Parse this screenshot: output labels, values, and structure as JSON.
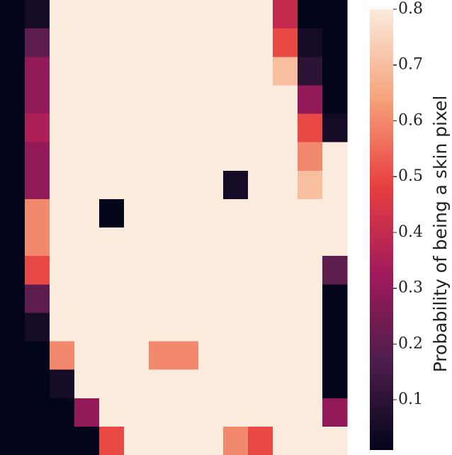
{
  "chart_data": {
    "type": "heatmap",
    "colorbar_label": "Probability of being a skin pixel",
    "colormap": [
      "#03051a",
      "#4c1d4b",
      "#a11a5b",
      "#e83f3f",
      "#f6a47c",
      "#faebdd"
    ],
    "clim": [
      0.01,
      0.8
    ],
    "cticks": [
      0.1,
      0.2,
      0.3,
      0.4,
      0.5,
      0.6,
      0.7,
      0.8
    ],
    "values": [
      [
        0.01,
        0.05,
        0.8,
        0.8,
        0.8,
        0.8,
        0.8,
        0.8,
        0.8,
        0.8,
        0.8,
        0.4,
        0.01,
        0.01
      ],
      [
        0.01,
        0.2,
        0.8,
        0.8,
        0.8,
        0.8,
        0.8,
        0.8,
        0.8,
        0.8,
        0.8,
        0.5,
        0.05,
        0.01
      ],
      [
        0.01,
        0.3,
        0.8,
        0.8,
        0.8,
        0.8,
        0.8,
        0.8,
        0.8,
        0.8,
        0.8,
        0.7,
        0.1,
        0.01
      ],
      [
        0.01,
        0.3,
        0.8,
        0.8,
        0.8,
        0.8,
        0.8,
        0.8,
        0.8,
        0.8,
        0.8,
        0.8,
        0.3,
        0.01
      ],
      [
        0.01,
        0.35,
        0.8,
        0.8,
        0.8,
        0.8,
        0.8,
        0.8,
        0.8,
        0.8,
        0.8,
        0.8,
        0.5,
        0.05
      ],
      [
        0.01,
        0.3,
        0.8,
        0.8,
        0.8,
        0.8,
        0.8,
        0.8,
        0.8,
        0.8,
        0.8,
        0.8,
        0.6,
        0.8
      ],
      [
        0.01,
        0.3,
        0.8,
        0.8,
        0.8,
        0.8,
        0.8,
        0.8,
        0.8,
        0.05,
        0.8,
        0.8,
        0.7,
        0.8
      ],
      [
        0.01,
        0.6,
        0.8,
        0.8,
        0.01,
        0.8,
        0.8,
        0.8,
        0.8,
        0.8,
        0.8,
        0.8,
        0.8,
        0.8
      ],
      [
        0.01,
        0.6,
        0.8,
        0.8,
        0.8,
        0.8,
        0.8,
        0.8,
        0.8,
        0.8,
        0.8,
        0.8,
        0.8,
        0.8
      ],
      [
        0.01,
        0.5,
        0.8,
        0.8,
        0.8,
        0.8,
        0.8,
        0.8,
        0.8,
        0.8,
        0.8,
        0.8,
        0.8,
        0.2
      ],
      [
        0.01,
        0.2,
        0.8,
        0.8,
        0.8,
        0.8,
        0.8,
        0.8,
        0.8,
        0.8,
        0.8,
        0.8,
        0.8,
        0.01
      ],
      [
        0.01,
        0.05,
        0.8,
        0.8,
        0.8,
        0.8,
        0.8,
        0.8,
        0.8,
        0.8,
        0.8,
        0.8,
        0.8,
        0.01
      ],
      [
        0.01,
        0.01,
        0.6,
        0.8,
        0.8,
        0.8,
        0.6,
        0.6,
        0.8,
        0.8,
        0.8,
        0.8,
        0.8,
        0.01
      ],
      [
        0.01,
        0.01,
        0.05,
        0.8,
        0.8,
        0.8,
        0.8,
        0.8,
        0.8,
        0.8,
        0.8,
        0.8,
        0.8,
        0.01
      ],
      [
        0.01,
        0.01,
        0.01,
        0.3,
        0.8,
        0.8,
        0.8,
        0.8,
        0.8,
        0.8,
        0.8,
        0.8,
        0.8,
        0.3
      ],
      [
        0.01,
        0.01,
        0.01,
        0.01,
        0.5,
        0.8,
        0.8,
        0.8,
        0.8,
        0.6,
        0.5,
        0.8,
        0.8,
        0.8
      ]
    ]
  }
}
